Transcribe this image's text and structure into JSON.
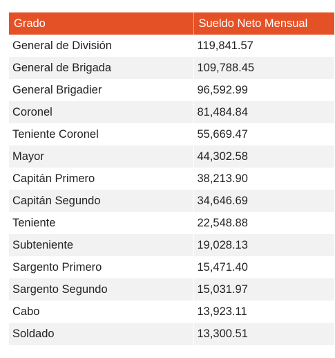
{
  "table": {
    "headers": [
      "Grado",
      "Sueldo Neto Mensual"
    ],
    "rows": [
      [
        "General de División",
        "119,841.57"
      ],
      [
        "General de Brigada",
        "109,788.45"
      ],
      [
        "General Brigadier",
        "96,592.99"
      ],
      [
        "Coronel",
        "81,484.84"
      ],
      [
        "Teniente Coronel",
        "55,669.47"
      ],
      [
        "Mayor",
        "44,302.58"
      ],
      [
        "Capitán Primero",
        "38,213.90"
      ],
      [
        "Capitán Segundo",
        "34,646.69"
      ],
      [
        "Teniente",
        "22,548.88"
      ],
      [
        "Subteniente",
        "19,028.13"
      ],
      [
        "Sargento Primero",
        "15,471.40"
      ],
      [
        "Sargento Segundo",
        "15,031.97"
      ],
      [
        "Cabo",
        "13,923.11"
      ],
      [
        "Soldado",
        "13,300.51"
      ]
    ]
  },
  "colors": {
    "header_bg": "#e55127",
    "header_text": "#ffffff",
    "stripe_bg": "#f2f2f2"
  }
}
